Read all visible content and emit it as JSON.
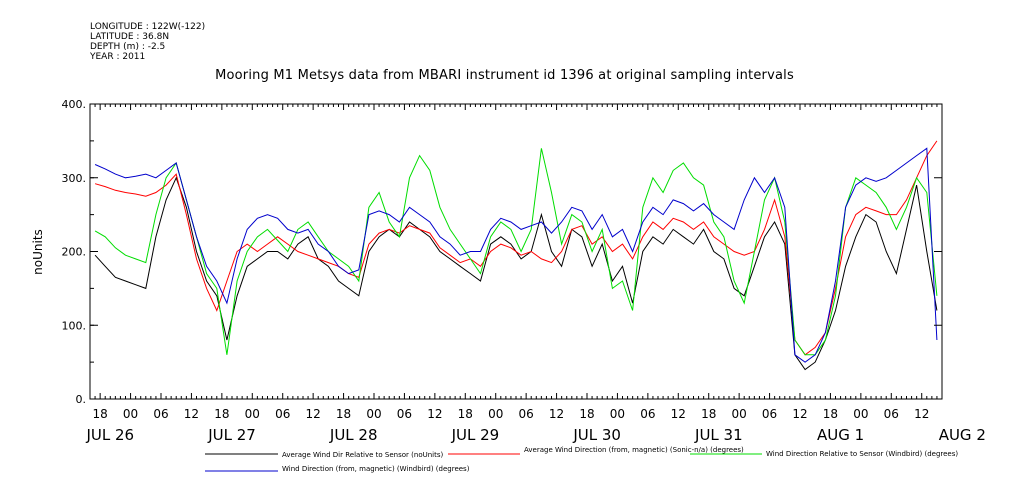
{
  "meta": {
    "longitude": "LONGITUDE : 122W(-122)",
    "latitude": "LATITUDE : 36.8N",
    "depth": "DEPTH (m) : -2.5",
    "year": "YEAR : 2011"
  },
  "chart_data": {
    "type": "line",
    "title": "Mooring M1 Metsys data from MBARI instrument id 1396 at original sampling intervals",
    "ylabel": "noUnits",
    "xlabel": "",
    "ylim": [
      0,
      400
    ],
    "yticks": [
      0,
      100,
      200,
      300,
      400
    ],
    "ytick_labels": [
      "0.",
      "100.",
      "200.",
      "300.",
      "400."
    ],
    "xlim_hours": [
      -8,
      160
    ],
    "xticks_hours": [
      -6,
      0,
      6,
      12,
      18,
      24,
      30,
      36,
      42,
      48,
      54,
      60,
      66,
      72,
      78,
      84,
      90,
      96,
      102,
      108,
      114,
      120,
      126,
      132,
      138,
      144,
      150,
      156
    ],
    "xtick_labels": [
      "18",
      "00",
      "06",
      "12",
      "18",
      "00",
      "06",
      "12",
      "18",
      "00",
      "06",
      "12",
      "18",
      "00",
      "06",
      "12",
      "18",
      "00",
      "06",
      "12",
      "18",
      "00",
      "06",
      "12",
      "18",
      "00",
      "06",
      "12"
    ],
    "date_labels": [
      {
        "hour": -4,
        "label": "JUL 26"
      },
      {
        "hour": 20,
        "label": "JUL 27"
      },
      {
        "hour": 44,
        "label": "JUL 28"
      },
      {
        "hour": 68,
        "label": "JUL 29"
      },
      {
        "hour": 92,
        "label": "JUL 30"
      },
      {
        "hour": 116,
        "label": "JUL 31"
      },
      {
        "hour": 140,
        "label": "AUG  1"
      },
      {
        "hour": 164,
        "label": "AUG  2"
      }
    ],
    "grid": false,
    "legend_position": "bottom",
    "series": [
      {
        "name": "Average Wind Dir Relative to Sensor (noUnits)",
        "color": "#000000",
        "x": [
          -7,
          -5,
          -3,
          -1,
          1,
          3,
          5,
          7,
          9,
          11,
          13,
          15,
          17,
          19,
          21,
          23,
          25,
          27,
          29,
          31,
          33,
          35,
          37,
          39,
          41,
          43,
          45,
          47,
          49,
          51,
          53,
          55,
          57,
          59,
          61,
          63,
          65,
          67,
          69,
          71,
          73,
          75,
          77,
          79,
          81,
          83,
          85,
          87,
          89,
          91,
          93,
          95,
          97,
          99,
          101,
          103,
          105,
          107,
          109,
          111,
          113,
          115,
          117,
          119,
          121,
          123,
          125,
          127,
          129,
          131,
          133,
          135,
          137,
          139,
          141,
          143,
          145,
          147,
          149,
          151,
          153,
          155,
          157,
          159
        ],
        "y": [
          195,
          180,
          165,
          160,
          155,
          150,
          220,
          270,
          300,
          260,
          200,
          160,
          140,
          80,
          140,
          180,
          190,
          200,
          200,
          190,
          210,
          220,
          190,
          180,
          160,
          150,
          140,
          200,
          220,
          230,
          220,
          240,
          230,
          220,
          200,
          190,
          180,
          170,
          160,
          210,
          220,
          210,
          190,
          200,
          250,
          200,
          180,
          230,
          220,
          180,
          210,
          160,
          180,
          130,
          200,
          220,
          210,
          230,
          220,
          210,
          230,
          200,
          190,
          150,
          140,
          180,
          220,
          240,
          210,
          60,
          40,
          50,
          80,
          120,
          180,
          220,
          250,
          240,
          200,
          170,
          230,
          290,
          200,
          120
        ]
      },
      {
        "name": "Average Wind Direction (from, magnetic) (Sonic-n/a) (degrees)",
        "color": "#ff0000",
        "x": [
          -7,
          -5,
          -3,
          -1,
          1,
          3,
          5,
          7,
          9,
          11,
          13,
          15,
          17,
          19,
          21,
          23,
          25,
          27,
          29,
          31,
          33,
          35,
          37,
          39,
          41,
          43,
          45,
          47,
          49,
          51,
          53,
          55,
          57,
          59,
          61,
          63,
          65,
          67,
          69,
          71,
          73,
          75,
          77,
          79,
          81,
          83,
          85,
          87,
          89,
          91,
          93,
          95,
          97,
          99,
          101,
          103,
          105,
          107,
          109,
          111,
          113,
          115,
          117,
          119,
          121,
          123,
          125,
          127,
          129,
          131,
          133,
          135,
          137,
          139,
          141,
          143,
          145,
          147,
          149,
          151,
          153,
          155,
          157,
          159
        ],
        "y": [
          292,
          288,
          283,
          280,
          278,
          275,
          280,
          290,
          305,
          250,
          190,
          150,
          120,
          160,
          200,
          210,
          200,
          210,
          220,
          210,
          200,
          195,
          190,
          185,
          180,
          170,
          165,
          210,
          225,
          230,
          225,
          235,
          230,
          225,
          205,
          195,
          185,
          190,
          180,
          200,
          210,
          205,
          195,
          200,
          190,
          185,
          200,
          230,
          235,
          210,
          220,
          200,
          210,
          190,
          220,
          240,
          230,
          245,
          240,
          230,
          240,
          220,
          210,
          200,
          195,
          200,
          230,
          270,
          220,
          80,
          60,
          70,
          90,
          150,
          220,
          250,
          260,
          255,
          250,
          250,
          270,
          300,
          330,
          350
        ]
      },
      {
        "name": "Wind Direction Relative to Sensor (Windbird) (degrees)",
        "color": "#00dd00",
        "x": [
          -7,
          -5,
          -3,
          -1,
          1,
          3,
          5,
          7,
          9,
          11,
          13,
          15,
          17,
          19,
          21,
          23,
          25,
          27,
          29,
          31,
          33,
          35,
          37,
          39,
          41,
          43,
          45,
          47,
          49,
          51,
          53,
          55,
          57,
          59,
          61,
          63,
          65,
          67,
          69,
          71,
          73,
          75,
          77,
          79,
          81,
          83,
          85,
          87,
          89,
          91,
          93,
          95,
          97,
          99,
          101,
          103,
          105,
          107,
          109,
          111,
          113,
          115,
          117,
          119,
          121,
          123,
          125,
          127,
          129,
          131,
          133,
          135,
          137,
          139,
          141,
          143,
          145,
          147,
          149,
          151,
          153,
          155,
          157,
          159
        ],
        "y": [
          228,
          220,
          205,
          195,
          190,
          185,
          250,
          300,
          320,
          270,
          220,
          170,
          150,
          60,
          160,
          200,
          220,
          230,
          215,
          200,
          230,
          240,
          220,
          200,
          190,
          180,
          160,
          260,
          280,
          240,
          220,
          300,
          330,
          310,
          260,
          230,
          210,
          190,
          170,
          220,
          240,
          230,
          200,
          230,
          340,
          280,
          210,
          250,
          240,
          200,
          230,
          150,
          160,
          120,
          260,
          300,
          280,
          310,
          320,
          300,
          290,
          240,
          220,
          160,
          130,
          200,
          270,
          300,
          240,
          80,
          60,
          60,
          80,
          140,
          260,
          300,
          290,
          280,
          260,
          230,
          260,
          300,
          280,
          140
        ]
      },
      {
        "name": "Wind Direction (from, magnetic) (Windbird) (degrees)",
        "color": "#0000cc",
        "x": [
          -7,
          -5,
          -3,
          -1,
          1,
          3,
          5,
          7,
          9,
          11,
          13,
          15,
          17,
          19,
          21,
          23,
          25,
          27,
          29,
          31,
          33,
          35,
          37,
          39,
          41,
          43,
          45,
          47,
          49,
          51,
          53,
          55,
          57,
          59,
          61,
          63,
          65,
          67,
          69,
          71,
          73,
          75,
          77,
          79,
          81,
          83,
          85,
          87,
          89,
          91,
          93,
          95,
          97,
          99,
          101,
          103,
          105,
          107,
          109,
          111,
          113,
          115,
          117,
          119,
          121,
          123,
          125,
          127,
          129,
          131,
          133,
          135,
          137,
          139,
          141,
          143,
          145,
          147,
          149,
          151,
          153,
          155,
          157,
          159
        ],
        "y": [
          318,
          312,
          305,
          300,
          302,
          305,
          300,
          310,
          320,
          270,
          220,
          180,
          160,
          130,
          190,
          230,
          245,
          250,
          245,
          230,
          225,
          230,
          210,
          200,
          180,
          170,
          175,
          250,
          255,
          250,
          240,
          260,
          250,
          240,
          220,
          210,
          195,
          200,
          200,
          230,
          245,
          240,
          230,
          235,
          240,
          225,
          240,
          260,
          255,
          230,
          250,
          220,
          230,
          200,
          240,
          260,
          250,
          270,
          265,
          255,
          265,
          250,
          240,
          230,
          270,
          300,
          280,
          300,
          260,
          60,
          50,
          60,
          90,
          160,
          260,
          290,
          300,
          295,
          300,
          310,
          320,
          330,
          340,
          80
        ]
      }
    ]
  }
}
